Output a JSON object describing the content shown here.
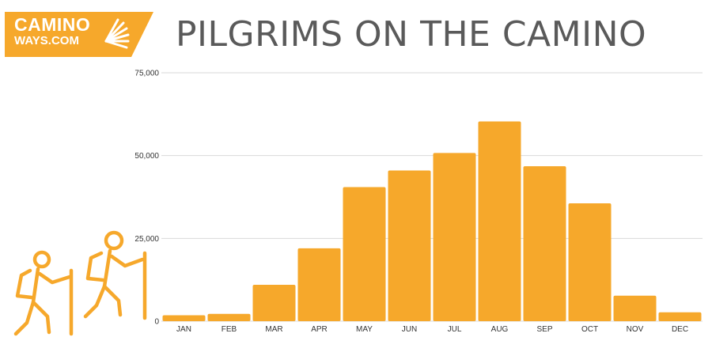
{
  "logo": {
    "line1": "CAMINO",
    "line2": "WAYS.COM",
    "color": "#f6a82b",
    "icon": "scallop-shell-icon"
  },
  "header": {
    "title": "PILGRIMS ON THE CAMINO"
  },
  "decoration": {
    "icon": "hikers-icon",
    "color": "#f6a82b"
  },
  "chart_data": {
    "type": "bar",
    "title": "PILGRIMS ON THE CAMINO",
    "xlabel": "",
    "ylabel": "",
    "categories": [
      "JAN",
      "FEB",
      "MAR",
      "APR",
      "MAY",
      "JUN",
      "JUL",
      "AUG",
      "SEP",
      "OCT",
      "NOV",
      "DEC"
    ],
    "values": [
      1800,
      2200,
      11000,
      22000,
      40500,
      45500,
      50800,
      60300,
      46800,
      35600,
      7700,
      2700
    ],
    "ylim": [
      0,
      75000
    ],
    "yticks": [
      0,
      25000,
      50000,
      75000
    ],
    "ytick_labels": [
      "0",
      "25,000",
      "50,000",
      "75,000"
    ],
    "grid": true,
    "legend": "none",
    "bar_color": "#f6a82b",
    "grid_color": "#d9d9d9"
  }
}
